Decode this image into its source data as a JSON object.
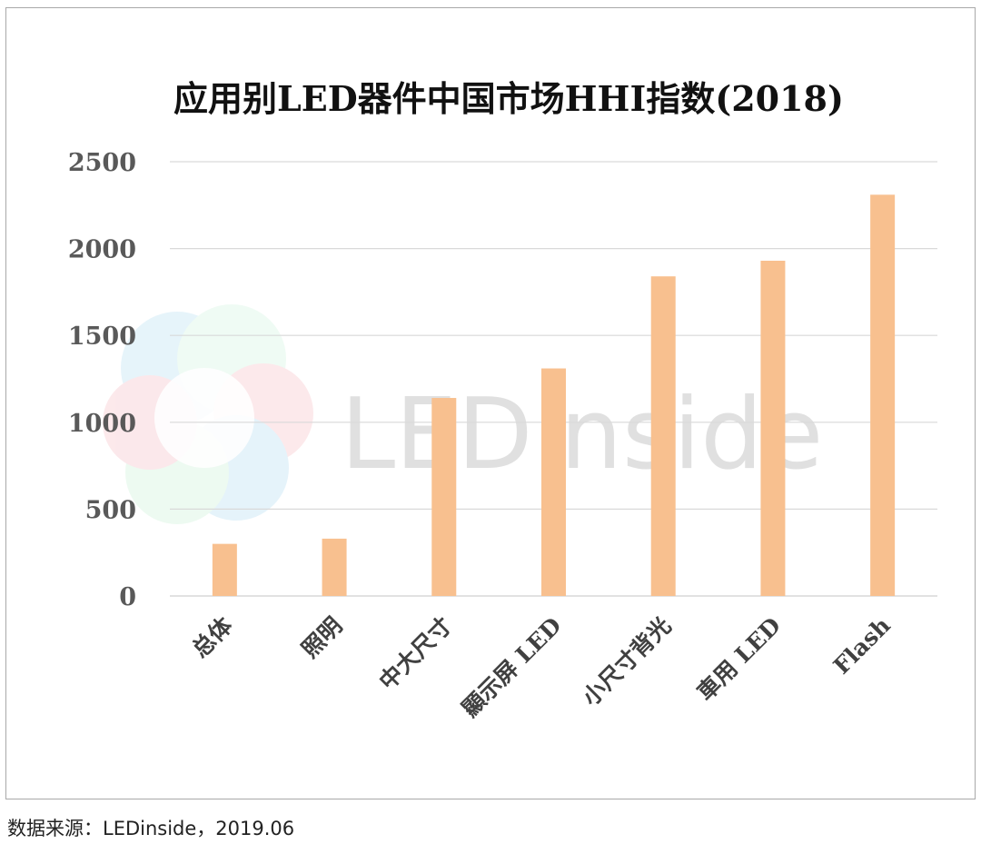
{
  "chart_data": {
    "type": "bar",
    "title": "应用别LED器件中国市场HHI指数(2018)",
    "xlabel": "",
    "ylabel": "",
    "categories": [
      "总体",
      "照明",
      "中大尺寸",
      "顯示屏 LED",
      "小尺寸背光",
      "車用 LED",
      "Flash"
    ],
    "values": [
      300,
      330,
      1140,
      1310,
      1840,
      1930,
      2310
    ],
    "ylim": [
      0,
      2500
    ],
    "yticks": [
      0,
      500,
      1000,
      1500,
      2000,
      2500
    ],
    "grid": true,
    "legend": "none",
    "bar_color": "#f8c08f",
    "grid_color": "#d9d9d9"
  },
  "watermark": {
    "text": "LEDinside"
  },
  "source": {
    "text": "数据来源：LEDinside，2019.06"
  }
}
